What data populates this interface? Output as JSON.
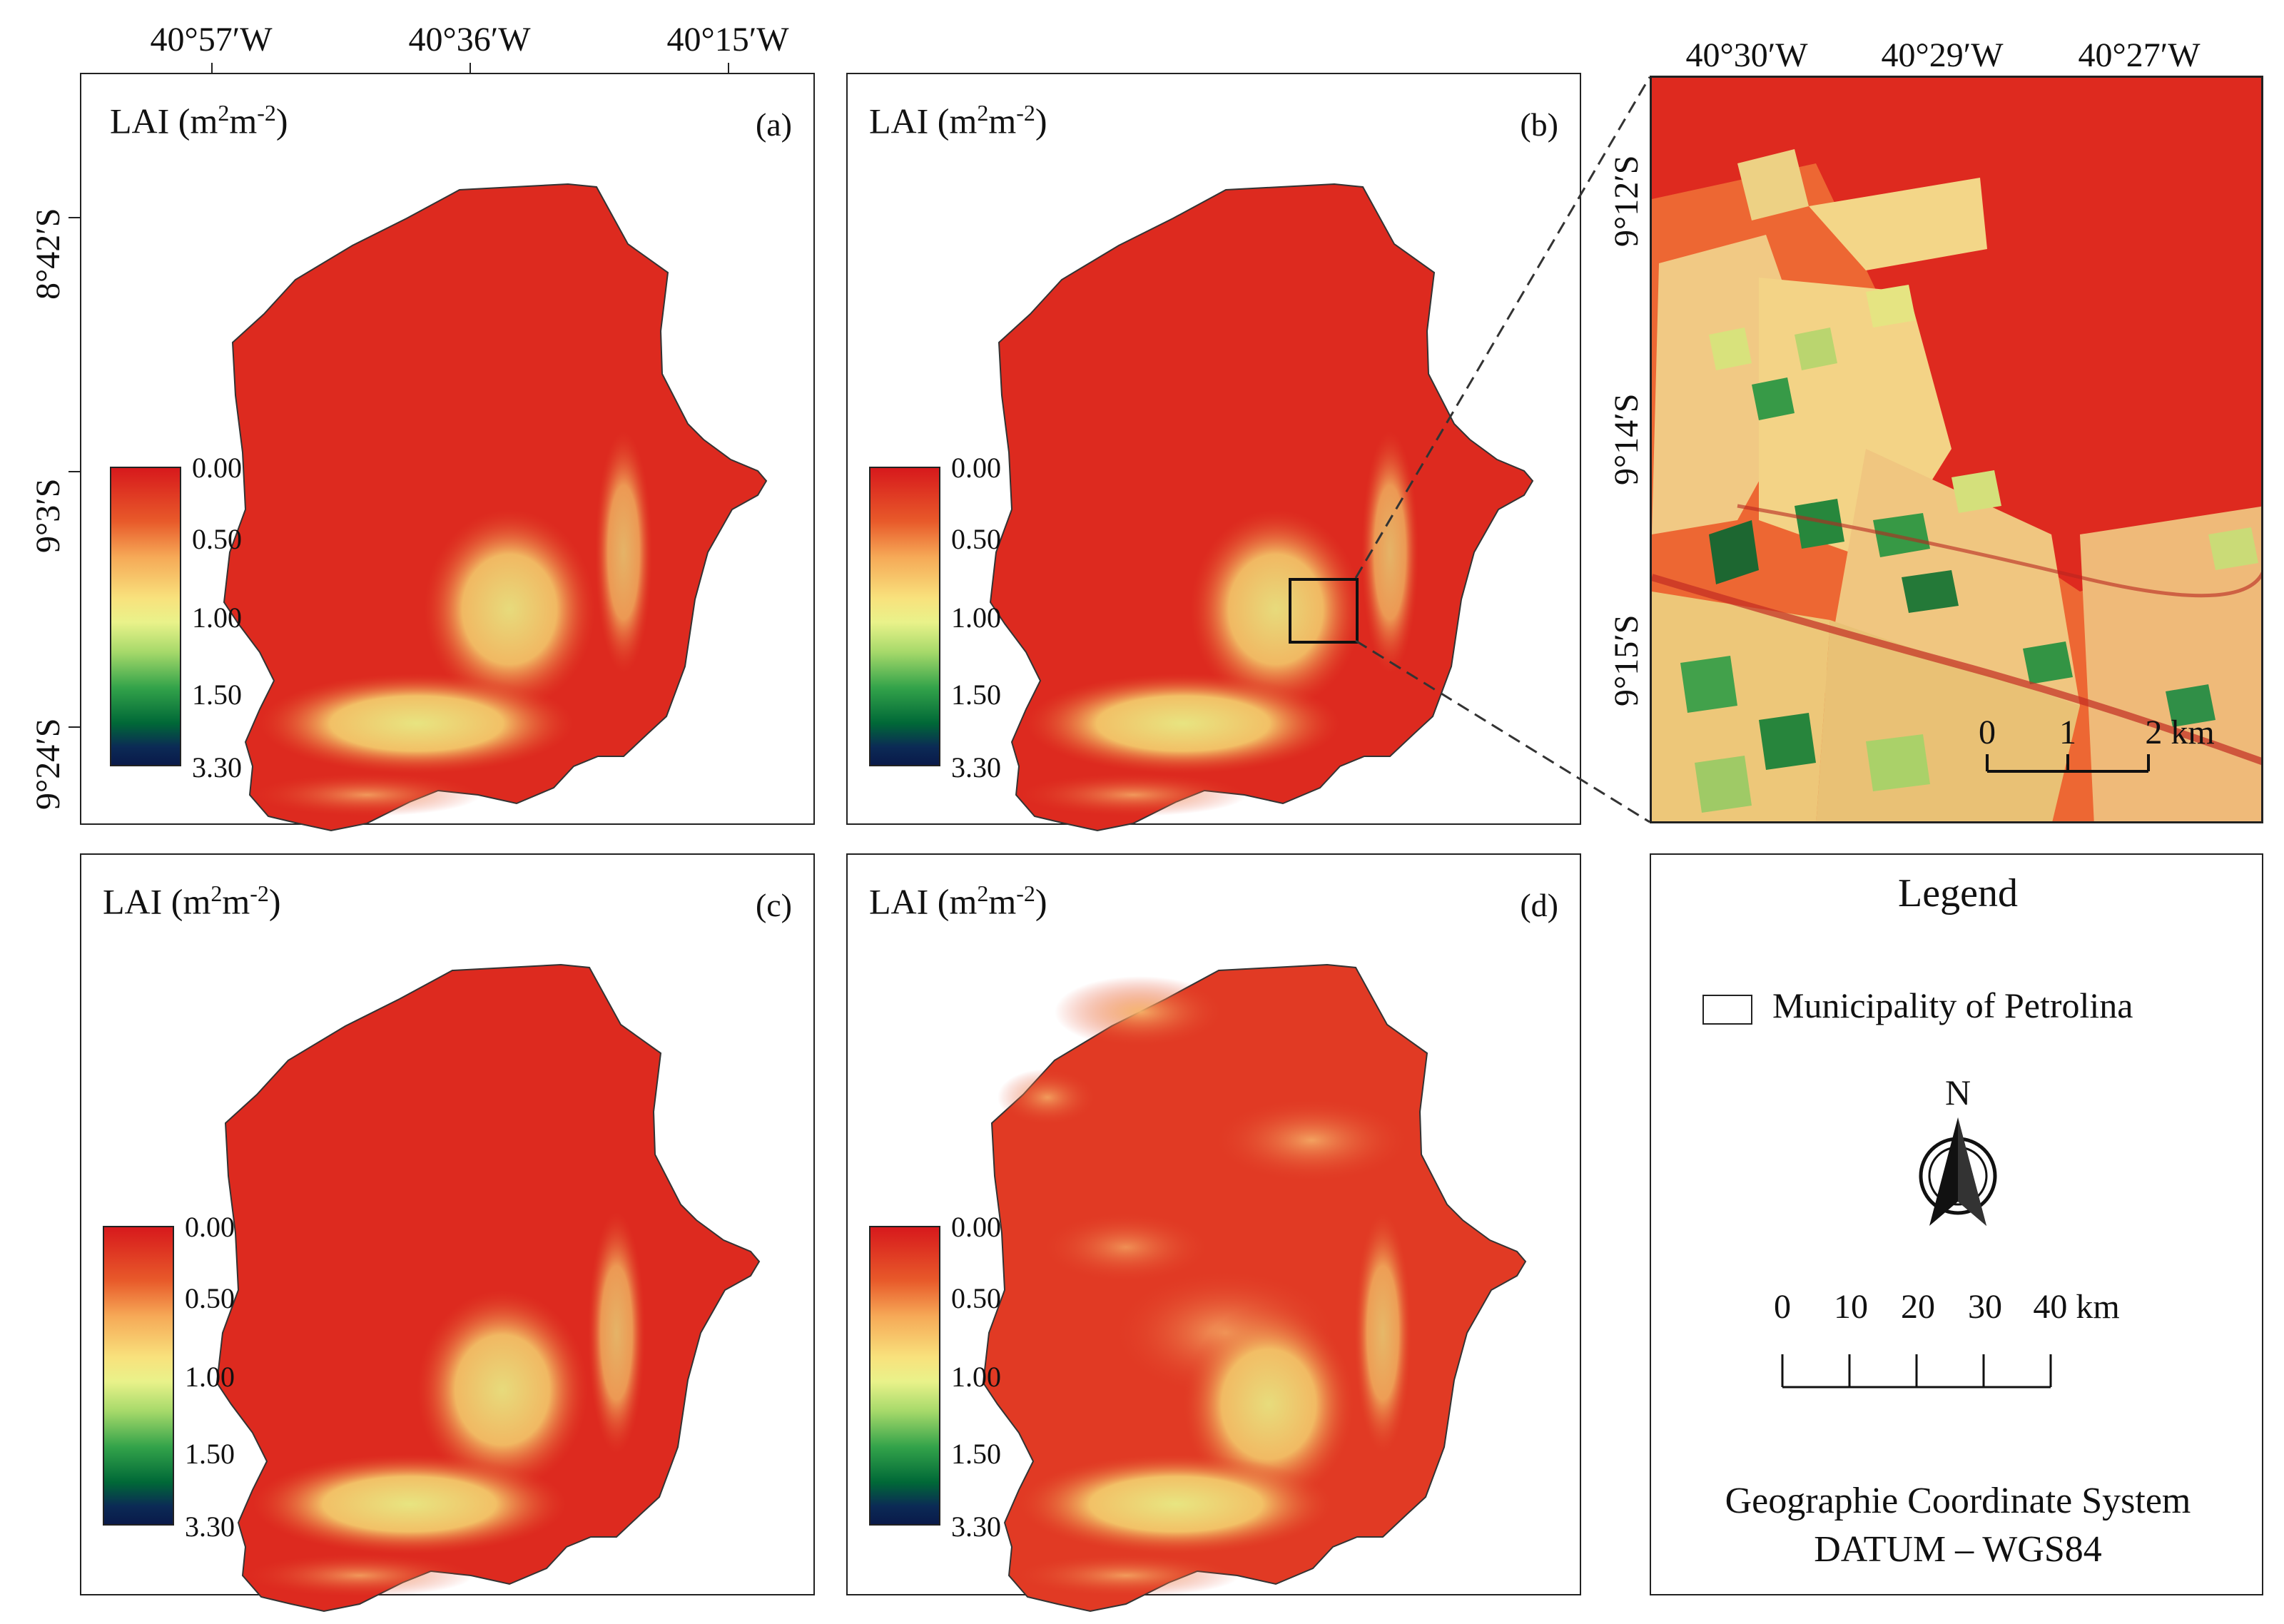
{
  "top_axis": {
    "labels": [
      "40°57′W",
      "40°36′W",
      "40°15′W"
    ]
  },
  "left_axis": {
    "labels": [
      "8°42′S",
      "9°3′S",
      "9°24′S"
    ]
  },
  "inset_axis": {
    "top": [
      "40°30′W",
      "40°29′W",
      "40°27′W"
    ],
    "left": [
      "9°12′S",
      "9°14′S",
      "9°15′S"
    ]
  },
  "panels": [
    {
      "id": "a",
      "label": "(a)",
      "title_main": "LAI (m",
      "title_sup1": "2",
      "title_mid": "m",
      "title_sup2": "-2",
      "title_end": ")"
    },
    {
      "id": "b",
      "label": "(b)",
      "title_main": "LAI (m",
      "title_sup1": "2",
      "title_mid": "m",
      "title_sup2": "-2",
      "title_end": ")"
    },
    {
      "id": "c",
      "label": "(c)",
      "title_main": "LAI (m",
      "title_sup1": "2",
      "title_mid": "m",
      "title_sup2": "-2",
      "title_end": ")"
    },
    {
      "id": "d",
      "label": "(d)",
      "title_main": "LAI (m",
      "title_sup1": "2",
      "title_mid": "m",
      "title_sup2": "-2",
      "title_end": ")"
    }
  ],
  "colorbar": {
    "labels": [
      "0.00",
      "0.50",
      "1.00",
      "1.50",
      "3.30"
    ],
    "colors": [
      "#d7191c",
      "#f6a957",
      "#e9f28a",
      "#33a34a",
      "#0a1a4a"
    ]
  },
  "inset_scale": {
    "labels": [
      "0",
      "1",
      "2 km"
    ]
  },
  "legend": {
    "title": "Legend",
    "item": "Municipality of Petrolina",
    "north": "N",
    "scale_labels": [
      "0",
      "10",
      "20",
      "30",
      "40 km"
    ],
    "coord_line1": "Geographie Coordinate System",
    "coord_line2": "DATUM – WGS84"
  }
}
